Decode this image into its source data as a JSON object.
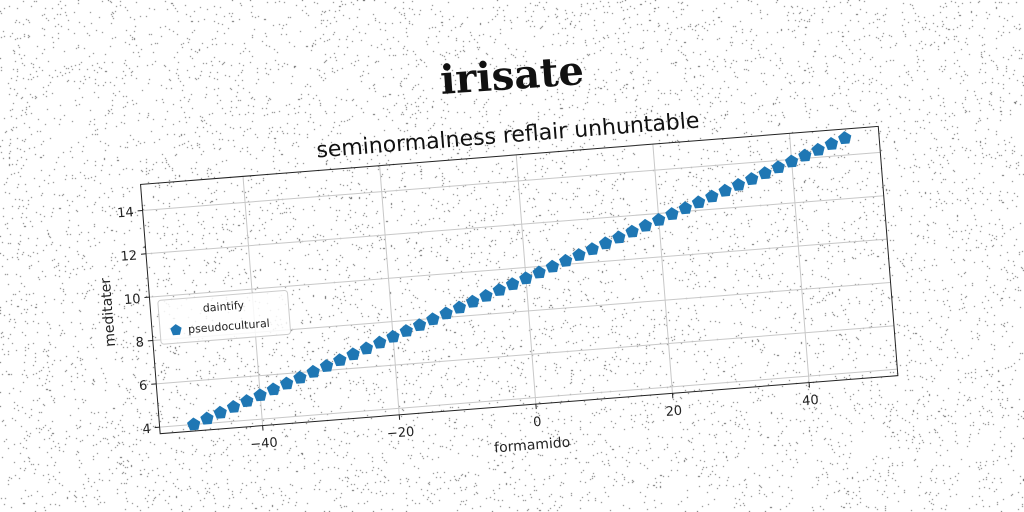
{
  "suptitle": "irisate",
  "chart_data": {
    "type": "scatter",
    "title": "seminormalness reflair unhuntable",
    "xlabel": "formamido",
    "ylabel": "meditater",
    "xlim": [
      -55,
      53
    ],
    "ylim": [
      3.7,
      15.2
    ],
    "xticks": [
      "−40",
      "−20",
      "0",
      "20",
      "40"
    ],
    "xtick_values": [
      -40,
      -20,
      0,
      20,
      40
    ],
    "yticks": [
      "4",
      "6",
      "8",
      "10",
      "12",
      "14"
    ],
    "ytick_values": [
      4,
      6,
      8,
      10,
      12,
      14
    ],
    "grid": true,
    "legend": {
      "title": "daintify",
      "placement": "center-left",
      "entries": [
        "pseudocultural"
      ]
    },
    "series": [
      {
        "name": "pseudocultural",
        "color": "#1f77b4",
        "marker": "pentagon",
        "x": [
          -50,
          -48,
          -46,
          -44,
          -42,
          -40,
          -38,
          -36,
          -34,
          -32,
          -30,
          -28,
          -26,
          -24,
          -22,
          -20,
          -18,
          -16,
          -14,
          -12,
          -10,
          -8,
          -6,
          -4,
          -2,
          0,
          2,
          4,
          6,
          8,
          10,
          12,
          14,
          16,
          18,
          20,
          22,
          24,
          26,
          28,
          30,
          32,
          34,
          36,
          38,
          40,
          42,
          44,
          46,
          48
        ],
        "y": [
          4.0,
          4.22,
          4.44,
          4.66,
          4.88,
          5.1,
          5.32,
          5.54,
          5.76,
          5.98,
          6.2,
          6.42,
          6.64,
          6.86,
          7.08,
          7.3,
          7.52,
          7.74,
          7.96,
          8.18,
          8.4,
          8.62,
          8.84,
          9.06,
          9.28,
          9.5,
          9.72,
          9.94,
          10.16,
          10.38,
          10.6,
          10.82,
          11.04,
          11.26,
          11.48,
          11.7,
          11.92,
          12.14,
          12.36,
          12.58,
          12.8,
          13.02,
          13.24,
          13.46,
          13.68,
          13.9,
          14.12,
          14.34,
          14.56,
          14.78
        ]
      }
    ]
  }
}
